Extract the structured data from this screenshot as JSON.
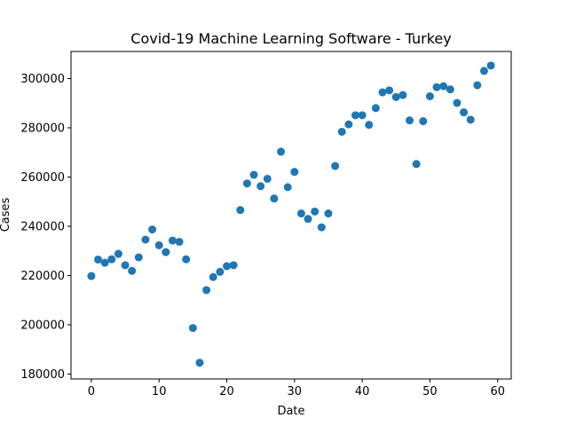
{
  "chart_data": {
    "type": "scatter",
    "title": "Covid-19 Machine Learning Software - Turkey",
    "xlabel": "Date",
    "ylabel": "Cases",
    "xlim": [
      -3,
      62
    ],
    "ylim": [
      178000,
      311000
    ],
    "x_ticks": [
      0,
      10,
      20,
      30,
      40,
      50,
      60
    ],
    "y_ticks": [
      180000,
      200000,
      220000,
      240000,
      260000,
      280000,
      300000
    ],
    "grid": false,
    "marker_color": "#1f77b4",
    "points": [
      [
        0,
        219800
      ],
      [
        1,
        226500
      ],
      [
        2,
        225200
      ],
      [
        3,
        226600
      ],
      [
        4,
        228800
      ],
      [
        5,
        224200
      ],
      [
        6,
        221900
      ],
      [
        7,
        227400
      ],
      [
        8,
        234600
      ],
      [
        9,
        238700
      ],
      [
        10,
        232300
      ],
      [
        11,
        229500
      ],
      [
        12,
        234200
      ],
      [
        13,
        233700
      ],
      [
        14,
        226600
      ],
      [
        15,
        198700
      ],
      [
        16,
        184600
      ],
      [
        17,
        214100
      ],
      [
        18,
        219400
      ],
      [
        19,
        221500
      ],
      [
        20,
        223800
      ],
      [
        21,
        224200
      ],
      [
        22,
        246600
      ],
      [
        23,
        257400
      ],
      [
        24,
        260900
      ],
      [
        25,
        256300
      ],
      [
        26,
        259300
      ],
      [
        27,
        251300
      ],
      [
        28,
        270300
      ],
      [
        29,
        255900
      ],
      [
        30,
        262100
      ],
      [
        31,
        245200
      ],
      [
        32,
        243000
      ],
      [
        33,
        246000
      ],
      [
        34,
        239600
      ],
      [
        35,
        245200
      ],
      [
        36,
        264500
      ],
      [
        37,
        278400
      ],
      [
        38,
        281400
      ],
      [
        39,
        285100
      ],
      [
        40,
        285100
      ],
      [
        41,
        281200
      ],
      [
        42,
        288000
      ],
      [
        43,
        294400
      ],
      [
        44,
        295200
      ],
      [
        45,
        292500
      ],
      [
        46,
        293300
      ],
      [
        47,
        283000
      ],
      [
        48,
        265300
      ],
      [
        49,
        282700
      ],
      [
        50,
        292800
      ],
      [
        51,
        296500
      ],
      [
        52,
        296900
      ],
      [
        53,
        295600
      ],
      [
        54,
        290100
      ],
      [
        55,
        286300
      ],
      [
        56,
        283300
      ],
      [
        57,
        297300
      ],
      [
        58,
        303100
      ],
      [
        59,
        305300
      ]
    ]
  }
}
